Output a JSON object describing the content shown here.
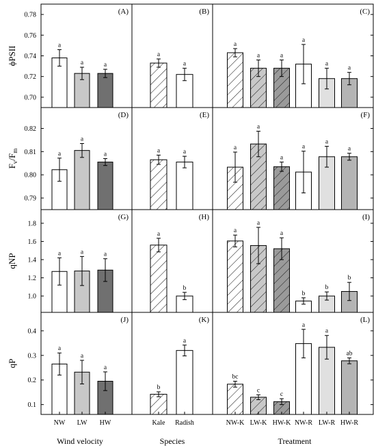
{
  "chart_data": {
    "type": "bar",
    "x_titles": [
      "Wind velocity",
      "Species",
      "Treatment"
    ],
    "group_colors": {
      "NW": "#ffffff",
      "LW": "#c8c8c8",
      "HW": "#707070",
      "Kale": "#ffffff",
      "Radish": "#ffffff",
      "NW-K": "#ffffff",
      "LW-K": "#c8c8c8",
      "HW-K": "#9a9a9a",
      "NW-R": "#ffffff",
      "LW-R": "#e0e0e0",
      "HW-R": "#b4b4b4"
    },
    "rows": [
      {
        "ylabel": "ϕPSII",
        "ylabel_parts": [],
        "ylim": [
          0.69,
          0.79
        ],
        "yticks": [
          "0.70",
          "0.72",
          "0.74",
          "0.76",
          "0.78"
        ],
        "panels": [
          {
            "label": "(A)",
            "categories": [
              "NW",
              "LW",
              "HW"
            ],
            "values": [
              0.738,
              0.723,
              0.723
            ],
            "errors": [
              0.008,
              0.006,
              0.004
            ],
            "letters": [
              "a",
              "a",
              "a"
            ],
            "hatched": [
              false,
              false,
              false
            ]
          },
          {
            "label": "(B)",
            "categories": [
              "Kale",
              "Radish"
            ],
            "values": [
              0.733,
              0.722
            ],
            "errors": [
              0.004,
              0.006
            ],
            "letters": [
              "a",
              "a"
            ],
            "hatched": [
              true,
              false
            ]
          },
          {
            "label": "(C)",
            "categories": [
              "NW-K",
              "LW-K",
              "HW-K",
              "NW-R",
              "LW-R",
              "HW-R"
            ],
            "values": [
              0.743,
              0.728,
              0.728,
              0.732,
              0.718,
              0.718
            ],
            "errors": [
              0.004,
              0.008,
              0.008,
              0.019,
              0.01,
              0.006
            ],
            "letters": [
              "a",
              "a",
              "a",
              "a",
              "a",
              "a"
            ],
            "hatched": [
              true,
              true,
              true,
              false,
              false,
              false
            ]
          }
        ]
      },
      {
        "ylabel": "",
        "ylabel_parts": [
          "F",
          "v",
          "/F",
          "m"
        ],
        "ylim": [
          0.785,
          0.829
        ],
        "yticks": [
          "0.79",
          "0.80",
          "0.81",
          "0.82"
        ],
        "panels": [
          {
            "label": "(D)",
            "categories": [
              "NW",
              "LW",
              "HW"
            ],
            "values": [
              0.8022,
              0.8105,
              0.8055
            ],
            "errors": [
              0.005,
              0.003,
              0.0015
            ],
            "letters": [
              "a",
              "a",
              "a"
            ],
            "hatched": [
              false,
              false,
              false
            ]
          },
          {
            "label": "(E)",
            "categories": [
              "Kale",
              "Radish"
            ],
            "values": [
              0.8065,
              0.8055
            ],
            "errors": [
              0.002,
              0.0025
            ],
            "letters": [
              "a",
              "a"
            ],
            "hatched": [
              true,
              false
            ]
          },
          {
            "label": "(F)",
            "categories": [
              "NW-K",
              "LW-K",
              "HW-K",
              "NW-R",
              "LW-R",
              "HW-R"
            ],
            "values": [
              0.8033,
              0.8133,
              0.8035,
              0.8012,
              0.8078,
              0.8078
            ],
            "errors": [
              0.0065,
              0.0055,
              0.002,
              0.009,
              0.0045,
              0.0015
            ],
            "letters": [
              "a",
              "a",
              "a",
              "a",
              "a",
              "a"
            ],
            "hatched": [
              true,
              true,
              true,
              false,
              false,
              false
            ]
          }
        ]
      },
      {
        "ylabel": "qNP",
        "ylabel_parts": [],
        "ylim": [
          0.82,
          1.95
        ],
        "yticks": [
          "1.0",
          "1.2",
          "1.4",
          "1.6",
          "1.8"
        ],
        "panels": [
          {
            "label": "(G)",
            "categories": [
              "NW",
              "LW",
              "HW"
            ],
            "values": [
              1.27,
              1.275,
              1.285
            ],
            "errors": [
              0.15,
              0.16,
              0.125
            ],
            "letters": [
              "a",
              "a",
              "a"
            ],
            "hatched": [
              false,
              false,
              false
            ]
          },
          {
            "label": "(H)",
            "categories": [
              "Kale",
              "Radish"
            ],
            "values": [
              1.56,
              1.0
            ],
            "errors": [
              0.075,
              0.04
            ],
            "letters": [
              "a",
              "b"
            ],
            "hatched": [
              true,
              false
            ]
          },
          {
            "label": "(I)",
            "categories": [
              "NW-K",
              "LW-K",
              "HW-K",
              "NW-R",
              "LW-R",
              "HW-R"
            ],
            "values": [
              1.605,
              1.555,
              1.52,
              0.945,
              1.0,
              1.05
            ],
            "errors": [
              0.065,
              0.2,
              0.12,
              0.035,
              0.045,
              0.1
            ],
            "letters": [
              "a",
              "a",
              "a",
              "b",
              "b",
              "b"
            ],
            "hatched": [
              true,
              true,
              true,
              false,
              false,
              false
            ]
          }
        ]
      },
      {
        "ylabel": "qP",
        "ylabel_parts": [],
        "ylim": [
          0.06,
          0.475
        ],
        "yticks": [
          "0.1",
          "0.2",
          "0.3",
          "0.4"
        ],
        "panels": [
          {
            "label": "(J)",
            "categories": [
              "NW",
              "LW",
              "HW"
            ],
            "values": [
              0.265,
              0.232,
              0.195
            ],
            "errors": [
              0.045,
              0.048,
              0.038
            ],
            "letters": [
              "a",
              "a",
              "a"
            ],
            "hatched": [
              false,
              false,
              false
            ]
          },
          {
            "label": "(K)",
            "categories": [
              "Kale",
              "Radish"
            ],
            "values": [
              0.142,
              0.32
            ],
            "errors": [
              0.01,
              0.022
            ],
            "letters": [
              "b",
              "a"
            ],
            "hatched": [
              true,
              false
            ]
          },
          {
            "label": "(L)",
            "categories": [
              "NW-K",
              "LW-K",
              "HW-K",
              "NW-R",
              "LW-R",
              "HW-R"
            ],
            "values": [
              0.183,
              0.13,
              0.112,
              0.348,
              0.333,
              0.278
            ],
            "errors": [
              0.012,
              0.01,
              0.012,
              0.058,
              0.048,
              0.012
            ],
            "letters": [
              "bc",
              "c",
              "c",
              "a",
              "a",
              "ab"
            ],
            "hatched": [
              true,
              true,
              true,
              false,
              false,
              false
            ]
          }
        ]
      }
    ]
  }
}
